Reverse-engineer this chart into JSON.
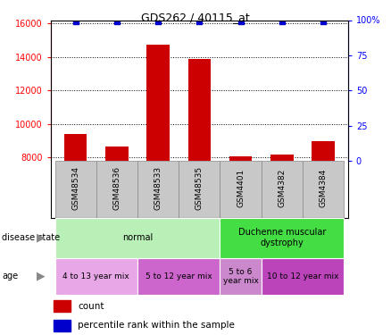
{
  "title": "GDS262 / 40115_at",
  "samples": [
    "GSM48534",
    "GSM48536",
    "GSM48533",
    "GSM48535",
    "GSM4401",
    "GSM4382",
    "GSM4384"
  ],
  "counts": [
    9400,
    8650,
    14750,
    13900,
    8050,
    8200,
    9000
  ],
  "percentile_ranks": [
    99,
    99,
    99,
    99,
    99,
    99,
    99
  ],
  "ylim_left": [
    7800,
    16200
  ],
  "ylim_right": [
    0,
    100
  ],
  "yticks_left": [
    8000,
    10000,
    12000,
    14000,
    16000
  ],
  "yticks_right": [
    0,
    25,
    50,
    75,
    100
  ],
  "bar_color": "#cc0000",
  "scatter_color": "#0000cc",
  "bar_bottom": 7800,
  "disease_state_groups": [
    {
      "label": "normal",
      "start": 0,
      "end": 4,
      "color": "#b8f0b8"
    },
    {
      "label": "Duchenne muscular\ndystrophy",
      "start": 4,
      "end": 7,
      "color": "#44dd44"
    }
  ],
  "age_groups": [
    {
      "label": "4 to 13 year mix",
      "start": 0,
      "end": 2,
      "color": "#e8a8e8"
    },
    {
      "label": "5 to 12 year mix",
      "start": 2,
      "end": 4,
      "color": "#cc66cc"
    },
    {
      "label": "5 to 6\nyear mix",
      "start": 4,
      "end": 5,
      "color": "#cc88cc"
    },
    {
      "label": "10 to 12 year mix",
      "start": 5,
      "end": 7,
      "color": "#bb44bb"
    }
  ],
  "sample_label_bg": "#c8c8c8",
  "sample_label_edgecolor": "#888888",
  "bg_color": "#ffffff",
  "label_disease_state": "disease state",
  "label_age": "age",
  "legend_count": "count",
  "legend_percentile": "percentile rank within the sample"
}
